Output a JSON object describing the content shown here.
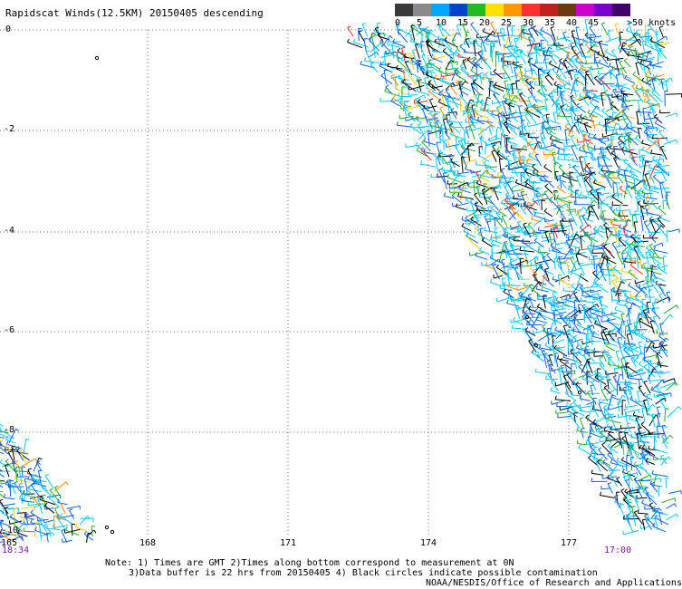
{
  "title": "Rapidscat Winds(12.5KM) 20150405 descending",
  "colorbar": {
    "labels": [
      "0",
      "5",
      "10",
      "15",
      "20",
      "25",
      "30",
      "35",
      "40",
      "45"
    ],
    "unit": ">50 knots",
    "colors": [
      "#3a3a3a",
      "#8a8a8a",
      "#00a8ff",
      "#0044cc",
      "#22bb22",
      "#ffe000",
      "#ff9900",
      "#ff3030",
      "#c02020",
      "#6a3a10",
      "#cc00cc",
      "#7a00cc",
      "#40006a"
    ]
  },
  "axes": {
    "y_labels": [
      "0",
      "-2",
      "-4",
      "-6",
      "-8",
      "-10"
    ],
    "x_labels": [
      "165",
      "168",
      "171",
      "174",
      "177"
    ]
  },
  "times": {
    "left": "18:34",
    "right": "17:00"
  },
  "notes": {
    "line1": "Note: 1) Times are GMT 2)Times along bottom correspond to measurement at 0N",
    "line2": "3)Data buffer is 22 hrs from 20150405 4) Black circles indicate possible contamination",
    "credit": "NOAA/NESDIS/Office of Research and Applications"
  }
}
